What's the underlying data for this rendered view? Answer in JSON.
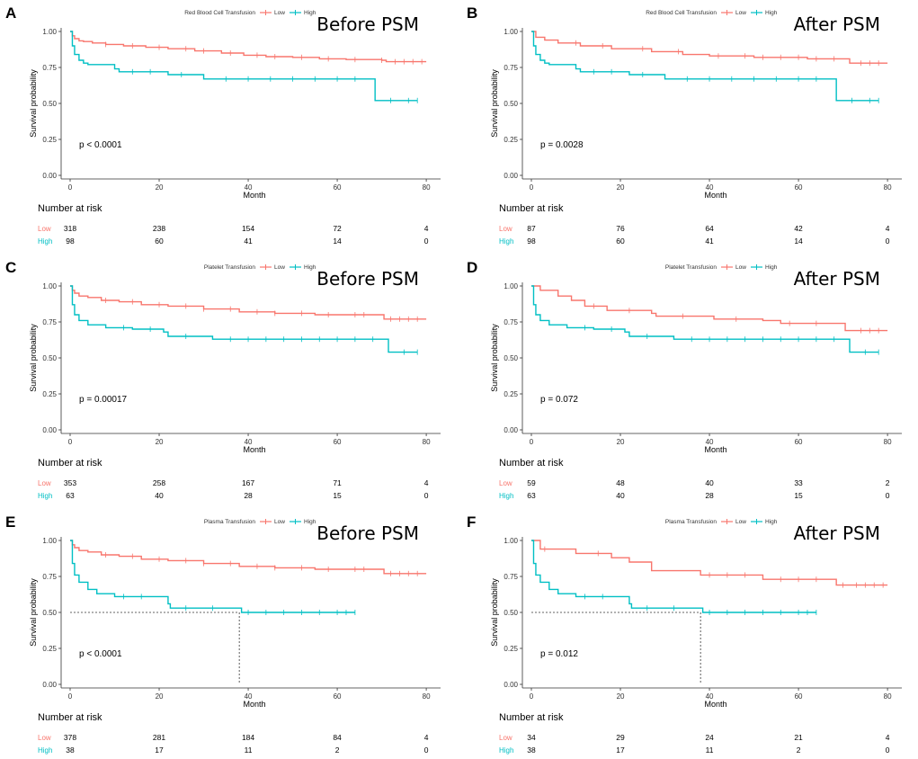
{
  "colors": {
    "low": "#F8766D",
    "high": "#00BFC4",
    "axis": "#333333",
    "median_line": "#333333"
  },
  "x_axis": {
    "label": "Month",
    "ticks": [
      0,
      20,
      40,
      60,
      80
    ],
    "lim": [
      0,
      82
    ]
  },
  "y_axis": {
    "label": "Survival probability",
    "ticks": [
      "0.00",
      "0.25",
      "0.50",
      "0.75",
      "1.00"
    ],
    "lim": [
      0,
      1
    ]
  },
  "legend": {
    "low": "Low",
    "high": "High"
  },
  "risk_table": {
    "title": "Number at risk",
    "times": [
      0,
      20,
      40,
      60,
      80
    ]
  },
  "chart_data": [
    {
      "type": "line",
      "letter": "A",
      "title": "Before PSM",
      "legend_title": "Red Blood Cell Transfusion",
      "pvalue": "p < 0.0001",
      "xlabel": "Month",
      "ylabel": "Survival probability",
      "xlim": [
        0,
        82
      ],
      "ylim": [
        0,
        1
      ],
      "series": [
        {
          "name": "Low",
          "points": [
            [
              0,
              1
            ],
            [
              0.5,
              0.97
            ],
            [
              1,
              0.95
            ],
            [
              2,
              0.935
            ],
            [
              3,
              0.93
            ],
            [
              5,
              0.92
            ],
            [
              8,
              0.91
            ],
            [
              12,
              0.9
            ],
            [
              17,
              0.89
            ],
            [
              22,
              0.88
            ],
            [
              28,
              0.865
            ],
            [
              34,
              0.85
            ],
            [
              39,
              0.835
            ],
            [
              44,
              0.825
            ],
            [
              50,
              0.82
            ],
            [
              56,
              0.81
            ],
            [
              62,
              0.805
            ],
            [
              70,
              0.8
            ],
            [
              71,
              0.79
            ],
            [
              80,
              0.79
            ]
          ],
          "censors": [
            8,
            14,
            20,
            26,
            30,
            36,
            42,
            46,
            52,
            58,
            64,
            70,
            73,
            75,
            77,
            79
          ]
        },
        {
          "name": "High",
          "points": [
            [
              0,
              1
            ],
            [
              0.5,
              0.9
            ],
            [
              1,
              0.84
            ],
            [
              2,
              0.8
            ],
            [
              3,
              0.78
            ],
            [
              4,
              0.77
            ],
            [
              10,
              0.74
            ],
            [
              11,
              0.72
            ],
            [
              22,
              0.7
            ],
            [
              30,
              0.67
            ],
            [
              68,
              0.67
            ],
            [
              68.5,
              0.52
            ],
            [
              78,
              0.52
            ]
          ],
          "censors": [
            14,
            18,
            25,
            35,
            40,
            45,
            50,
            55,
            60,
            64,
            72,
            76,
            78
          ]
        }
      ],
      "risk": {
        "Low": [
          "318",
          "238",
          "154",
          "72",
          "4"
        ],
        "High": [
          "98",
          "60",
          "41",
          "14",
          "0"
        ]
      }
    },
    {
      "type": "line",
      "letter": "B",
      "title": "After PSM",
      "legend_title": "Red Blood Cell Transfusion",
      "pvalue": "p = 0.0028",
      "xlabel": "Month",
      "ylabel": "Survival probability",
      "xlim": [
        0,
        82
      ],
      "ylim": [
        0,
        1
      ],
      "series": [
        {
          "name": "Low",
          "points": [
            [
              0,
              1
            ],
            [
              1,
              0.96
            ],
            [
              3,
              0.94
            ],
            [
              6,
              0.92
            ],
            [
              11,
              0.9
            ],
            [
              18,
              0.88
            ],
            [
              27,
              0.86
            ],
            [
              34,
              0.84
            ],
            [
              40,
              0.83
            ],
            [
              50,
              0.82
            ],
            [
              62,
              0.81
            ],
            [
              71,
              0.81
            ],
            [
              71.5,
              0.78
            ],
            [
              80,
              0.78
            ]
          ],
          "censors": [
            10,
            16,
            25,
            33,
            42,
            48,
            52,
            56,
            60,
            64,
            68,
            74,
            76,
            78
          ]
        },
        {
          "name": "High",
          "points": [
            [
              0,
              1
            ],
            [
              0.5,
              0.9
            ],
            [
              1,
              0.84
            ],
            [
              2,
              0.8
            ],
            [
              3,
              0.78
            ],
            [
              4,
              0.77
            ],
            [
              10,
              0.74
            ],
            [
              11,
              0.72
            ],
            [
              22,
              0.7
            ],
            [
              30,
              0.67
            ],
            [
              68,
              0.67
            ],
            [
              68.5,
              0.52
            ],
            [
              78,
              0.52
            ]
          ],
          "censors": [
            14,
            18,
            25,
            35,
            40,
            45,
            50,
            55,
            60,
            64,
            72,
            76,
            78
          ]
        }
      ],
      "risk": {
        "Low": [
          "87",
          "76",
          "64",
          "42",
          "4"
        ],
        "High": [
          "98",
          "60",
          "41",
          "14",
          "0"
        ]
      }
    },
    {
      "type": "line",
      "letter": "C",
      "title": "Before PSM",
      "legend_title": "Platelet Transfusion",
      "pvalue": "p = 0.00017",
      "xlabel": "Month",
      "ylabel": "Survival probability",
      "xlim": [
        0,
        82
      ],
      "ylim": [
        0,
        1
      ],
      "series": [
        {
          "name": "Low",
          "points": [
            [
              0,
              1
            ],
            [
              0.5,
              0.97
            ],
            [
              1,
              0.95
            ],
            [
              2,
              0.93
            ],
            [
              4,
              0.92
            ],
            [
              7,
              0.9
            ],
            [
              11,
              0.89
            ],
            [
              16,
              0.87
            ],
            [
              22,
              0.86
            ],
            [
              30,
              0.84
            ],
            [
              38,
              0.82
            ],
            [
              46,
              0.81
            ],
            [
              55,
              0.8
            ],
            [
              70,
              0.8
            ],
            [
              70.5,
              0.77
            ],
            [
              80,
              0.77
            ]
          ],
          "censors": [
            8,
            14,
            20,
            26,
            30,
            36,
            42,
            46,
            52,
            58,
            64,
            66,
            72,
            74,
            76,
            78
          ]
        },
        {
          "name": "High",
          "points": [
            [
              0,
              1
            ],
            [
              0.5,
              0.87
            ],
            [
              1,
              0.8
            ],
            [
              2,
              0.76
            ],
            [
              4,
              0.73
            ],
            [
              8,
              0.71
            ],
            [
              14,
              0.7
            ],
            [
              21,
              0.68
            ],
            [
              22,
              0.65
            ],
            [
              32,
              0.63
            ],
            [
              71,
              0.63
            ],
            [
              71.5,
              0.54
            ],
            [
              78,
              0.54
            ]
          ],
          "censors": [
            12,
            18,
            26,
            36,
            40,
            44,
            48,
            52,
            56,
            60,
            64,
            68,
            75,
            78
          ]
        }
      ],
      "risk": {
        "Low": [
          "353",
          "258",
          "167",
          "71",
          "4"
        ],
        "High": [
          "63",
          "40",
          "28",
          "15",
          "0"
        ]
      }
    },
    {
      "type": "line",
      "letter": "D",
      "title": "After PSM",
      "legend_title": "Platelet Transfusion",
      "pvalue": "p = 0.072",
      "xlabel": "Month",
      "ylabel": "Survival probability",
      "xlim": [
        0,
        82
      ],
      "ylim": [
        0,
        1
      ],
      "series": [
        {
          "name": "Low",
          "points": [
            [
              0,
              1
            ],
            [
              2,
              0.97
            ],
            [
              6,
              0.93
            ],
            [
              9,
              0.9
            ],
            [
              12,
              0.86
            ],
            [
              17,
              0.83
            ],
            [
              27,
              0.81
            ],
            [
              28,
              0.79
            ],
            [
              41,
              0.77
            ],
            [
              52,
              0.76
            ],
            [
              56,
              0.74
            ],
            [
              70,
              0.74
            ],
            [
              70.5,
              0.69
            ],
            [
              80,
              0.69
            ]
          ],
          "censors": [
            14,
            22,
            34,
            46,
            58,
            64,
            74,
            76,
            78
          ]
        },
        {
          "name": "High",
          "points": [
            [
              0,
              1
            ],
            [
              0.5,
              0.87
            ],
            [
              1,
              0.8
            ],
            [
              2,
              0.76
            ],
            [
              4,
              0.73
            ],
            [
              8,
              0.71
            ],
            [
              14,
              0.7
            ],
            [
              21,
              0.68
            ],
            [
              22,
              0.65
            ],
            [
              32,
              0.63
            ],
            [
              71,
              0.63
            ],
            [
              71.5,
              0.54
            ],
            [
              78,
              0.54
            ]
          ],
          "censors": [
            12,
            18,
            26,
            36,
            40,
            44,
            48,
            52,
            56,
            60,
            64,
            68,
            75,
            78
          ]
        }
      ],
      "risk": {
        "Low": [
          "59",
          "48",
          "40",
          "33",
          "2"
        ],
        "High": [
          "63",
          "40",
          "28",
          "15",
          "0"
        ]
      }
    },
    {
      "type": "line",
      "letter": "E",
      "title": "Before PSM",
      "legend_title": "Plasma Transfusion",
      "pvalue": "p < 0.0001",
      "xlabel": "Month",
      "ylabel": "Survival probability",
      "xlim": [
        0,
        82
      ],
      "ylim": [
        0,
        1
      ],
      "median": 38,
      "series": [
        {
          "name": "Low",
          "points": [
            [
              0,
              1
            ],
            [
              0.5,
              0.97
            ],
            [
              1,
              0.95
            ],
            [
              2,
              0.93
            ],
            [
              4,
              0.92
            ],
            [
              7,
              0.9
            ],
            [
              11,
              0.89
            ],
            [
              16,
              0.87
            ],
            [
              22,
              0.86
            ],
            [
              30,
              0.84
            ],
            [
              38,
              0.82
            ],
            [
              46,
              0.81
            ],
            [
              55,
              0.8
            ],
            [
              70,
              0.8
            ],
            [
              70.5,
              0.77
            ],
            [
              80,
              0.77
            ]
          ],
          "censors": [
            8,
            14,
            20,
            26,
            30,
            36,
            42,
            46,
            52,
            58,
            64,
            66,
            72,
            74,
            76,
            78
          ]
        },
        {
          "name": "High",
          "points": [
            [
              0,
              1
            ],
            [
              0.5,
              0.84
            ],
            [
              1,
              0.76
            ],
            [
              2,
              0.71
            ],
            [
              4,
              0.66
            ],
            [
              6,
              0.63
            ],
            [
              10,
              0.61
            ],
            [
              22,
              0.56
            ],
            [
              22.5,
              0.53
            ],
            [
              38,
              0.53
            ],
            [
              38.5,
              0.5
            ],
            [
              64,
              0.5
            ]
          ],
          "censors": [
            12,
            16,
            26,
            32,
            40,
            44,
            48,
            52,
            56,
            60,
            62,
            64
          ]
        }
      ],
      "risk": {
        "Low": [
          "378",
          "281",
          "184",
          "84",
          "4"
        ],
        "High": [
          "38",
          "17",
          "11",
          "2",
          "0"
        ]
      }
    },
    {
      "type": "line",
      "letter": "F",
      "title": "After PSM",
      "legend_title": "Plasma Transfusion",
      "pvalue": "p = 0.012",
      "xlabel": "Month",
      "ylabel": "Survival probability",
      "xlim": [
        0,
        82
      ],
      "ylim": [
        0,
        1
      ],
      "median": 38,
      "series": [
        {
          "name": "Low",
          "points": [
            [
              0,
              1
            ],
            [
              2,
              0.94
            ],
            [
              10,
              0.91
            ],
            [
              18,
              0.88
            ],
            [
              22,
              0.85
            ],
            [
              27,
              0.79
            ],
            [
              38,
              0.76
            ],
            [
              52,
              0.73
            ],
            [
              68,
              0.73
            ],
            [
              68.5,
              0.69
            ],
            [
              80,
              0.69
            ]
          ],
          "censors": [
            3,
            15,
            40,
            44,
            48,
            56,
            60,
            64,
            70,
            73,
            75,
            77,
            79
          ]
        },
        {
          "name": "High",
          "points": [
            [
              0,
              1
            ],
            [
              0.5,
              0.84
            ],
            [
              1,
              0.76
            ],
            [
              2,
              0.71
            ],
            [
              4,
              0.66
            ],
            [
              6,
              0.63
            ],
            [
              10,
              0.61
            ],
            [
              22,
              0.56
            ],
            [
              22.5,
              0.53
            ],
            [
              38,
              0.53
            ],
            [
              38.5,
              0.5
            ],
            [
              64,
              0.5
            ]
          ],
          "censors": [
            12,
            16,
            26,
            32,
            40,
            44,
            48,
            52,
            56,
            60,
            62,
            64
          ]
        }
      ],
      "risk": {
        "Low": [
          "34",
          "29",
          "24",
          "21",
          "4"
        ],
        "High": [
          "38",
          "17",
          "11",
          "2",
          "0"
        ]
      }
    }
  ]
}
